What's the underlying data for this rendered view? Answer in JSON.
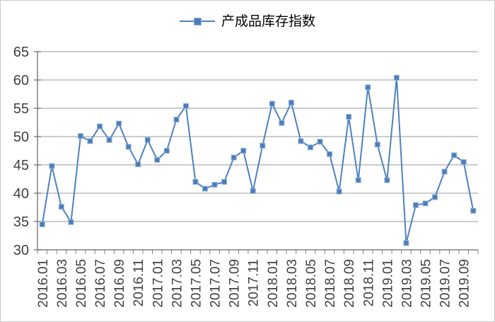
{
  "legend": {
    "label": "产成品库存指数"
  },
  "colors": {
    "series": "#4f81bd",
    "marker_fill": "#4a7ebb",
    "marker_border": "#95b3d7",
    "gridline": "#999999",
    "axis": "#808080",
    "tick": "#808080",
    "label_text": "#404040",
    "chart_border": "#c9c9c9"
  },
  "chart_data": {
    "type": "line",
    "title": "",
    "series": [
      {
        "name": "产成品库存指数",
        "values": [
          34.5,
          44.8,
          37.6,
          34.9,
          50.1,
          49.2,
          51.8,
          49.4,
          52.3,
          48.2,
          45.1,
          49.4,
          45.9,
          47.5,
          53.0,
          55.4,
          42.0,
          40.8,
          41.5,
          42.0,
          46.3,
          47.5,
          40.4,
          48.4,
          55.8,
          52.4,
          56.0,
          49.2,
          48.1,
          49.1,
          46.9,
          40.3,
          53.5,
          42.3,
          58.7,
          48.6,
          42.3,
          60.4,
          31.2,
          37.9,
          38.2,
          39.3,
          43.8,
          46.7,
          45.5,
          36.9
        ]
      }
    ],
    "x": [
      "2016.01",
      "2016.02",
      "2016.03",
      "2016.04",
      "2016.05",
      "2016.06",
      "2016.07",
      "2016.08",
      "2016.09",
      "2016.10",
      "2016.11",
      "2016.12",
      "2017.01",
      "2017.02",
      "2017.03",
      "2017.04",
      "2017.05",
      "2017.06",
      "2017.07",
      "2017.08",
      "2017.09",
      "2017.10",
      "2017.11",
      "2017.12",
      "2018.01",
      "2018.02",
      "2018.03",
      "2018.04",
      "2018.05",
      "2018.06",
      "2018.07",
      "2018.08",
      "2018.09",
      "2018.10",
      "2018.11",
      "2018.12",
      "2019.01",
      "2019.02",
      "2019.03",
      "2019.04",
      "2019.05",
      "2019.06",
      "2019.07",
      "2019.08",
      "2019.09",
      "2019.10"
    ],
    "x_label_step": 2,
    "x_tick_labels": [
      "2016.01",
      "2016.03",
      "2016.05",
      "2016.07",
      "2016.09",
      "2016.11",
      "2017.01",
      "2017.03",
      "2017.05",
      "2017.07",
      "2017.09",
      "2017.11",
      "2018.01",
      "2018.03",
      "2018.05",
      "2018.07",
      "2018.09",
      "2018.11",
      "2019.01",
      "2019.03",
      "2019.05",
      "2019.07",
      "2019.09"
    ],
    "xlabel": "",
    "ylabel": "",
    "ylim": [
      30,
      65
    ],
    "y_ticks": [
      30,
      35,
      40,
      45,
      50,
      55,
      60,
      65
    ],
    "grid": "horizontal",
    "legend_position": "top-center",
    "marker": "square"
  }
}
